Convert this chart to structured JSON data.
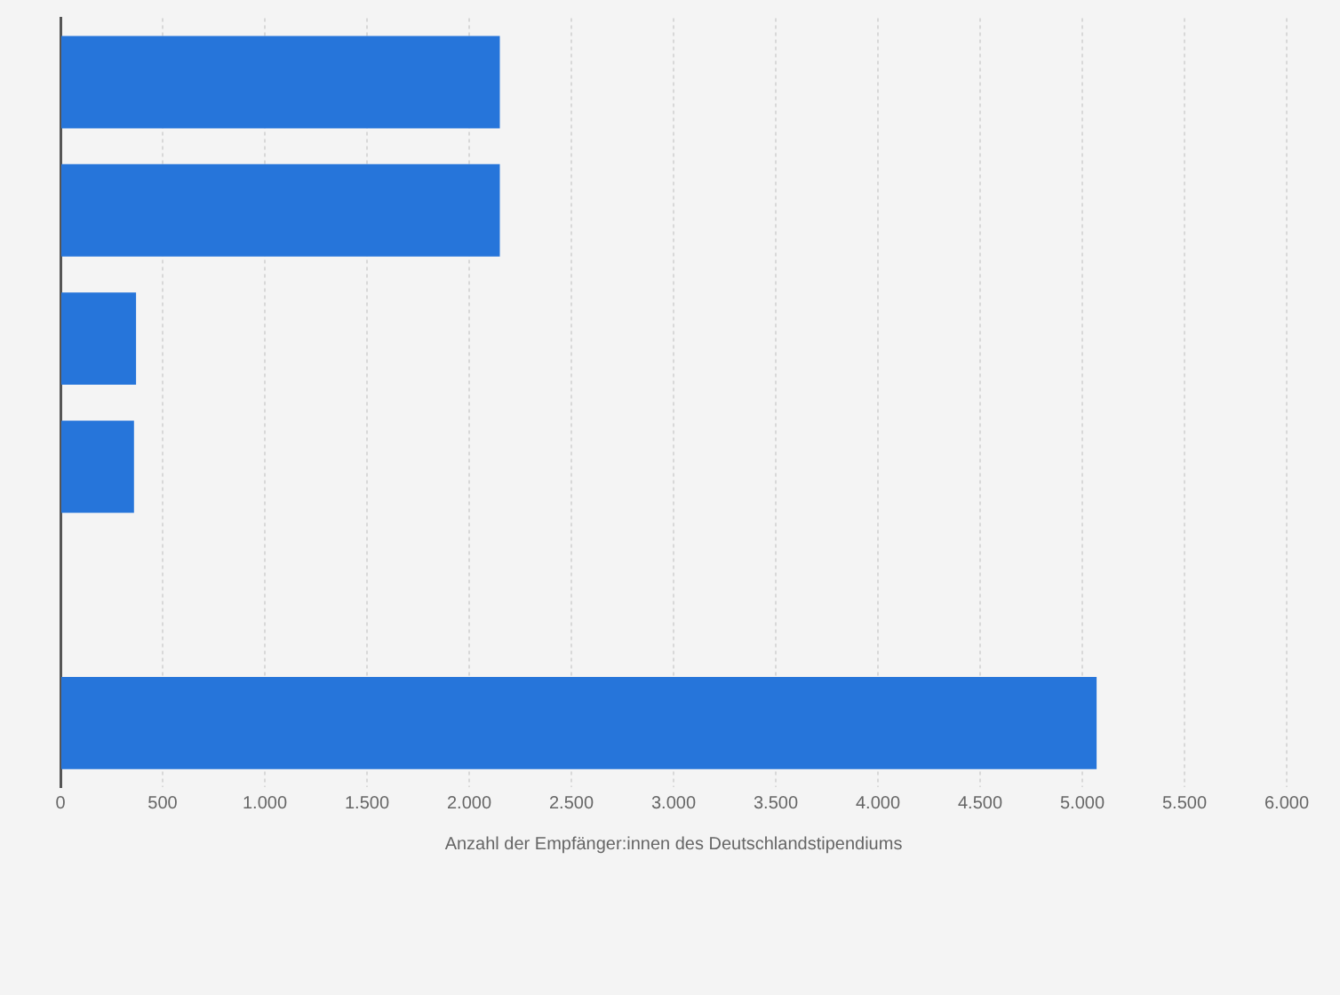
{
  "chart_data": {
    "type": "bar",
    "orientation": "horizontal",
    "categories": [
      null,
      null,
      null,
      null,
      null,
      null
    ],
    "values": [
      2150,
      2150,
      370,
      360,
      null,
      5070
    ],
    "color": "#2675da",
    "xlabel": "Anzahl der Empfänger:innen des Deutschlandstipendiums",
    "xlim": [
      0,
      6000
    ],
    "xticks": [
      {
        "value": 0,
        "label": "0"
      },
      {
        "value": 500,
        "label": "500"
      },
      {
        "value": 1000,
        "label": "1.000"
      },
      {
        "value": 1500,
        "label": "1.500"
      },
      {
        "value": 2000,
        "label": "2.000"
      },
      {
        "value": 2500,
        "label": "2.500"
      },
      {
        "value": 3000,
        "label": "3.000"
      },
      {
        "value": 3500,
        "label": "3.500"
      },
      {
        "value": 4000,
        "label": "4.000"
      },
      {
        "value": 4500,
        "label": "4.500"
      },
      {
        "value": 5000,
        "label": "5.000"
      },
      {
        "value": 5500,
        "label": "5.500"
      },
      {
        "value": 6000,
        "label": "6.000"
      }
    ],
    "grid": "x",
    "legend": false
  }
}
